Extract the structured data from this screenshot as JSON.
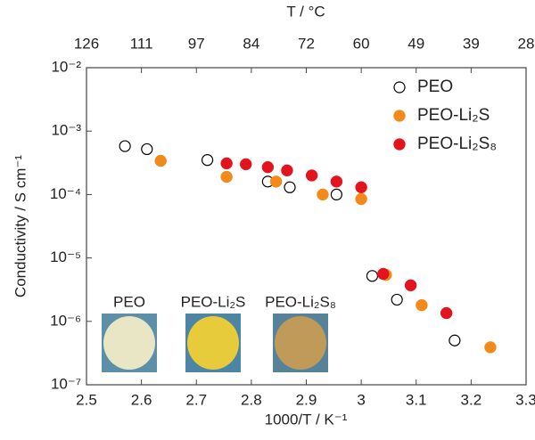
{
  "chart_data": {
    "type": "scatter",
    "xlabel": "1000/T / K⁻¹",
    "ylabel": "Conductivity / S cm⁻¹",
    "x2label": "T / °C",
    "xlim": [
      2.5,
      3.3
    ],
    "xticks": [
      2.5,
      2.6,
      2.7,
      2.8,
      2.9,
      3.0,
      3.1,
      3.2,
      3.3
    ],
    "x2ticks": [
      {
        "value": 2.5,
        "label": "126"
      },
      {
        "value": 2.6,
        "label": "111"
      },
      {
        "value": 2.7,
        "label": "97"
      },
      {
        "value": 2.8,
        "label": "84"
      },
      {
        "value": 2.9,
        "label": "72"
      },
      {
        "value": 3.0,
        "label": "60"
      },
      {
        "value": 3.1,
        "label": "49"
      },
      {
        "value": 3.2,
        "label": "39"
      },
      {
        "value": 3.3,
        "label": "28"
      }
    ],
    "ylim": [
      1e-07,
      0.01
    ],
    "yscale": "log",
    "yticks": [
      {
        "value": 1e-07,
        "label": "10⁻⁷"
      },
      {
        "value": 1e-06,
        "label": "10⁻⁶"
      },
      {
        "value": 1e-05,
        "label": "10⁻⁵"
      },
      {
        "value": 0.0001,
        "label": "10⁻⁴"
      },
      {
        "value": 0.001,
        "label": "10⁻³"
      },
      {
        "value": 0.01,
        "label": "10⁻²"
      }
    ],
    "legend": "upper right",
    "series": [
      {
        "name": "PEO",
        "color": "#000000",
        "marker": "open",
        "x": [
          2.57,
          2.61,
          2.72,
          2.83,
          2.87,
          2.955,
          3.02,
          3.065,
          3.17
        ],
        "values": [
          0.00058,
          0.00052,
          0.00035,
          0.00016,
          0.00013,
          0.0001,
          5.2e-06,
          2.2e-06,
          5e-07
        ]
      },
      {
        "name": "PEO-Li₂S",
        "color": "#f28a1a",
        "marker": "filled",
        "x": [
          2.635,
          2.755,
          2.845,
          2.93,
          3.0,
          3.045,
          3.11,
          3.235
        ],
        "values": [
          0.00034,
          0.00019,
          0.00016,
          0.0001,
          8.5e-05,
          5.4e-06,
          1.8e-06,
          3.9e-07
        ]
      },
      {
        "name": "PEO-Li₂S₈",
        "color": "#e3141e",
        "marker": "filled",
        "x": [
          2.755,
          2.79,
          2.83,
          2.865,
          2.91,
          2.955,
          3.0,
          3.04,
          3.09,
          3.155
        ],
        "values": [
          0.00031,
          0.0003,
          0.00027,
          0.00024,
          0.0002,
          0.00016,
          0.00013,
          5.6e-06,
          3.7e-06,
          1.35e-06
        ]
      }
    ],
    "annotations": [
      "PEO",
      "PEO-Li₂S",
      "PEO-Li₂S₈"
    ]
  }
}
